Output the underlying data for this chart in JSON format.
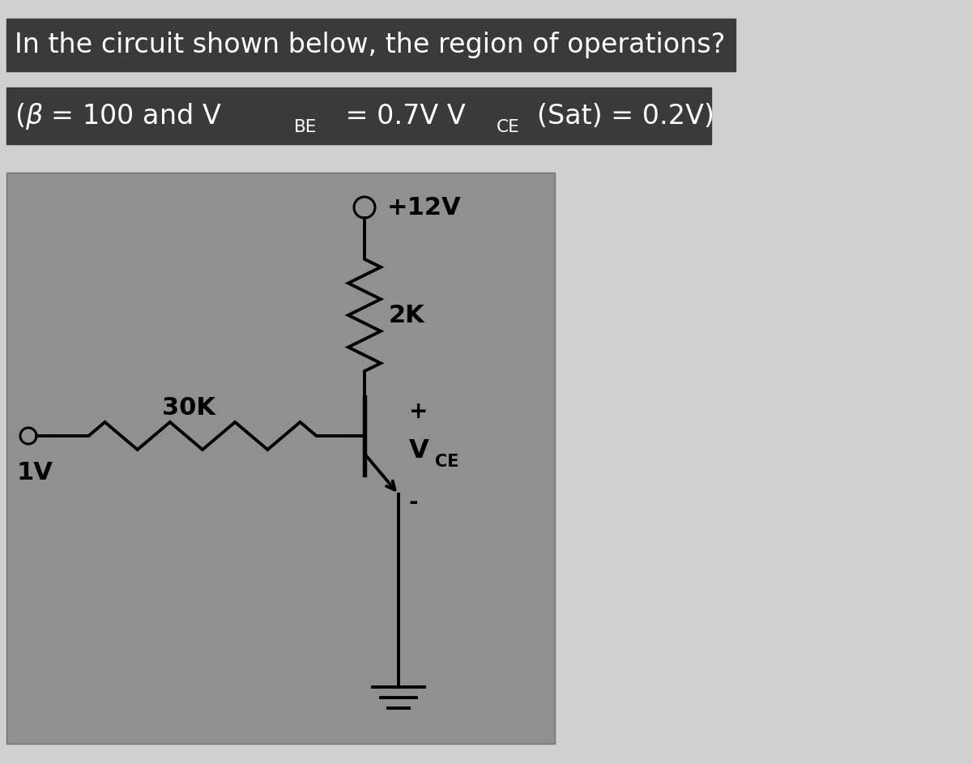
{
  "bg_color": "#d0d0d0",
  "circuit_bg": "#909090",
  "title_highlight": "#3a3a3a",
  "sub_highlight": "#3a3a3a",
  "text_white": "#ffffff",
  "text_black": "#000000",
  "circuit_wire_color": "#000000",
  "title_text": "In the circuit shown below, the region of operations?",
  "label_1V": "1V",
  "label_30K": "30K",
  "label_2K": "2K",
  "label_12V": "+12V",
  "label_plus": "+",
  "label_minus": "-",
  "title_fontsize": 24,
  "subtitle_fontsize": 24,
  "circuit_fontsize": 22,
  "fig_width": 12.0,
  "fig_height": 9.43
}
